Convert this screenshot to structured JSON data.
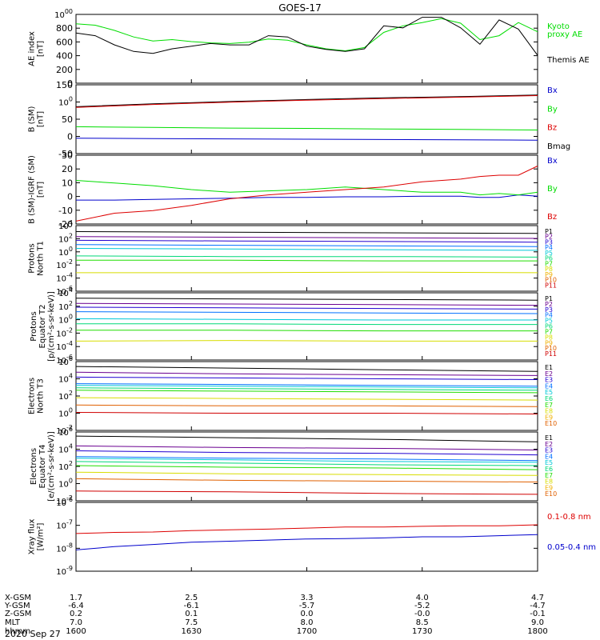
{
  "title": "GOES-17",
  "date_label": "2020 Sep 27",
  "colors": {
    "black": "#000000",
    "green": "#00dd00",
    "blue": "#0000cc",
    "red": "#dd0000",
    "p_channels": [
      "#000000",
      "#6a0090",
      "#2000d0",
      "#0070ff",
      "#00c8d8",
      "#00d878",
      "#20dd00",
      "#d8dd00",
      "#f0b000",
      "#e06000",
      "#d00000"
    ],
    "e_channels": [
      "#000000",
      "#6a0090",
      "#2000d0",
      "#0070ff",
      "#00c8d8",
      "#00d878",
      "#20dd00",
      "#d8dd00",
      "#f0b000",
      "#e06000",
      "#d00000"
    ]
  },
  "orbit_table": {
    "row_labels": [
      "X-GSM",
      "Y-GSM",
      "Z-GSM",
      "MLT",
      "hhmm"
    ],
    "columns": [
      [
        "1.7",
        "-6.4",
        "0.2",
        "7.0",
        "1600"
      ],
      [
        "2.5",
        "-6.1",
        "0.1",
        "7.5",
        "1630"
      ],
      [
        "3.3",
        "-5.7",
        "0.0",
        "8.0",
        "1700"
      ],
      [
        "4.0",
        "-5.2",
        "-0.0",
        "8.5",
        "1730"
      ],
      [
        "4.7",
        "-4.7",
        "-0.1",
        "9.0",
        "1800"
      ]
    ]
  },
  "panels": [
    {
      "id": "ae",
      "ylabel": [
        "AE index",
        "[nT]"
      ],
      "yticks": [
        "0",
        "200",
        "400",
        "600",
        "800",
        "1000"
      ],
      "legend": [
        {
          "text": "Kyoto",
          "color": "#00dd00"
        },
        {
          "text": "proxy AE",
          "color": "#00dd00"
        },
        {
          "text": "Themis AE",
          "color": "#000000"
        }
      ]
    },
    {
      "id": "bsm",
      "ylabel": [
        "B (SM)",
        "[nT]"
      ],
      "yticks": [
        "-50",
        "0",
        "50",
        "100",
        "150"
      ],
      "legend": [
        {
          "text": "Bx",
          "color": "#0000cc"
        },
        {
          "text": "By",
          "color": "#00dd00"
        },
        {
          "text": "Bz",
          "color": "#dd0000"
        },
        {
          "text": "Bmag",
          "color": "#000000"
        }
      ]
    },
    {
      "id": "bigrf",
      "ylabel": [
        "B (SM)-IGRF (SM)",
        "[nT]"
      ],
      "yticks": [
        "-20",
        "-10",
        "0",
        "10",
        "20",
        "30"
      ],
      "legend": [
        {
          "text": "Bx",
          "color": "#0000cc"
        },
        {
          "text": "By",
          "color": "#00dd00"
        },
        {
          "text": "Bz",
          "color": "#dd0000"
        }
      ]
    },
    {
      "id": "pt1",
      "ylabel": [
        "Protons",
        "North T1"
      ],
      "yticks": [
        "10-6",
        "10-4",
        "10-2",
        "100",
        "102",
        "104"
      ],
      "channels": [
        "P1",
        "P2",
        "P3",
        "P4",
        "P5",
        "P6",
        "P7",
        "P8",
        "P9",
        "P10",
        "P11"
      ]
    },
    {
      "id": "pt2",
      "ylabel": [
        "Protons",
        "Equator T2",
        "[p/(cm²-s-sr-keV)]"
      ],
      "yticks": [
        "10-6",
        "10-4",
        "10-2",
        "100",
        "102",
        "104"
      ],
      "channels": [
        "P1",
        "P2",
        "P3",
        "P4",
        "P5",
        "P6",
        "P7",
        "P8",
        "P9",
        "P10",
        "P11"
      ]
    },
    {
      "id": "et3",
      "ylabel": [
        "Electrons",
        "North T3"
      ],
      "yticks": [
        "10-2",
        "100",
        "102",
        "104",
        "106"
      ],
      "channels": [
        "E1",
        "E2",
        "E3",
        "E4",
        "E5",
        "E6",
        "E7",
        "E8",
        "E9",
        "E10"
      ]
    },
    {
      "id": "et4",
      "ylabel": [
        "Electrons",
        "Equator T4",
        "[e/(cm²-s-sr-keV)]"
      ],
      "yticks": [
        "10-2",
        "100",
        "102",
        "104",
        "106"
      ],
      "channels": [
        "E1",
        "E2",
        "E3",
        "E4",
        "E5",
        "E6",
        "E7",
        "E8",
        "E9",
        "E10"
      ]
    },
    {
      "id": "xray",
      "ylabel": [
        "Xray flux",
        "[W/m²]"
      ],
      "yticks": [
        "10-9",
        "10-8",
        "10-7",
        "10-6"
      ],
      "legend": [
        {
          "text": "0.1-0.8 nm",
          "color": "#dd0000"
        },
        {
          "text": "0.05-0.4 nm",
          "color": "#0000cc"
        }
      ]
    }
  ],
  "chart_data": {
    "type": "line",
    "x_axis": {
      "unit": "hhmm",
      "range": [
        "1600",
        "1800"
      ],
      "ticks": [
        "1600",
        "1630",
        "1700",
        "1730",
        "1800"
      ]
    },
    "panels": [
      {
        "id": "ae",
        "ylim": [
          0,
          1000
        ],
        "x": [
          0,
          5,
          10,
          15,
          20,
          25,
          30,
          35,
          40,
          45,
          50,
          55,
          60,
          65,
          70,
          75,
          80,
          85,
          90,
          95,
          100,
          105,
          110,
          115,
          120
        ],
        "series": [
          {
            "name": "Kyoto proxy AE",
            "color": "#00dd00",
            "values": [
              880,
              860,
              780,
              680,
              620,
              640,
              610,
              590,
              580,
              600,
              650,
              630,
              560,
              500,
              470,
              520,
              750,
              850,
              900,
              960,
              890,
              640,
              700,
              900,
              760
            ]
          },
          {
            "name": "Themis AE",
            "color": "#000000",
            "values": [
              740,
              700,
              560,
              460,
              430,
              500,
              540,
              580,
              560,
              560,
              700,
              680,
              540,
              490,
              460,
              500,
              850,
              820,
              980,
              980,
              820,
              570,
              940,
              800,
              400
            ]
          }
        ]
      },
      {
        "id": "bsm",
        "ylim": [
          -50,
          150
        ],
        "x": [
          0,
          20,
          40,
          60,
          80,
          100,
          120
        ],
        "series": [
          {
            "name": "Bmag",
            "color": "#000000",
            "values": [
              88,
              97,
              104,
              110,
              115,
              119,
              124
            ]
          },
          {
            "name": "Bz",
            "color": "#dd0000",
            "values": [
              86,
              95,
              102,
              108,
              113,
              117,
              122
            ]
          },
          {
            "name": "By",
            "color": "#00dd00",
            "values": [
              27,
              25,
              23,
              22,
              20,
              19,
              17
            ]
          },
          {
            "name": "Bx",
            "color": "#0000cc",
            "values": [
              -8,
              -9,
              -10,
              -11,
              -12,
              -13,
              -14
            ]
          }
        ]
      },
      {
        "id": "bigrf",
        "ylim": [
          -20,
          30
        ],
        "x": [
          0,
          10,
          20,
          30,
          40,
          50,
          60,
          70,
          80,
          90,
          100,
          105,
          110,
          115,
          120
        ],
        "series": [
          {
            "name": "Bx",
            "color": "#0000cc",
            "values": [
              -3,
              -3,
              -2.5,
              -2,
              -1.5,
              -1,
              -1,
              -0.5,
              -0.5,
              0,
              0,
              -1,
              -1,
              1,
              0
            ]
          },
          {
            "name": "By",
            "color": "#00dd00",
            "values": [
              12,
              10,
              8,
              5,
              3,
              4,
              5,
              7,
              5,
              3,
              3,
              1,
              2,
              1,
              3
            ]
          },
          {
            "name": "Bz",
            "color": "#dd0000",
            "values": [
              -19,
              -13,
              -11,
              -7,
              -2,
              1,
              3,
              5,
              7,
              11,
              13,
              15,
              16,
              16,
              23
            ]
          }
        ]
      },
      {
        "id": "pt1",
        "ylim_log10": [
          -6,
          4
        ],
        "x": [
          0,
          40,
          80,
          120
        ],
        "series": [
          {
            "name": "P1",
            "color": "#000000",
            "log10_values": [
              3.3,
              3.2,
              3.1,
              3.0
            ]
          },
          {
            "name": "P2",
            "color": "#6a0090",
            "log10_values": [
              2.5,
              2.4,
              2.3,
              2.2
            ]
          },
          {
            "name": "P3",
            "color": "#2000d0",
            "log10_values": [
              1.9,
              1.8,
              1.7,
              1.6
            ]
          },
          {
            "name": "P4",
            "color": "#0070ff",
            "log10_values": [
              1.2,
              1.1,
              1.0,
              0.9
            ]
          },
          {
            "name": "P5",
            "color": "#00c8d8",
            "log10_values": [
              0.6,
              0.5,
              0.4,
              0.3
            ]
          },
          {
            "name": "P6",
            "color": "#00d878",
            "log10_values": [
              -0.6,
              -0.7,
              -0.7,
              -0.8
            ]
          },
          {
            "name": "P7",
            "color": "#20dd00",
            "log10_values": [
              -1.3,
              -1.3,
              -1.4,
              -1.4
            ]
          },
          {
            "name": "P8",
            "color": "#d8dd00",
            "log10_values": [
              -3.3,
              -3.3,
              -3.2,
              -3.3
            ]
          }
        ]
      },
      {
        "id": "pt2",
        "ylim_log10": [
          -6,
          4
        ],
        "x": [
          0,
          40,
          80,
          120
        ],
        "series": [
          {
            "name": "P1",
            "color": "#000000",
            "log10_values": [
              3.4,
              3.3,
              3.2,
              3.1
            ]
          },
          {
            "name": "P2",
            "color": "#6a0090",
            "log10_values": [
              2.6,
              2.5,
              2.4,
              2.3
            ]
          },
          {
            "name": "P3",
            "color": "#2000d0",
            "log10_values": [
              2.0,
              1.9,
              1.8,
              1.7
            ]
          },
          {
            "name": "P4",
            "color": "#0070ff",
            "log10_values": [
              1.3,
              1.2,
              1.1,
              1.0
            ]
          },
          {
            "name": "P5",
            "color": "#00c8d8",
            "log10_values": [
              0.2,
              0.1,
              0.0,
              0.0
            ]
          },
          {
            "name": "P6",
            "color": "#00d878",
            "log10_values": [
              -0.6,
              -0.6,
              -0.7,
              -0.7
            ]
          },
          {
            "name": "P7",
            "color": "#20dd00",
            "log10_values": [
              -1.6,
              -1.6,
              -1.7,
              -1.7
            ]
          },
          {
            "name": "P8",
            "color": "#d8dd00",
            "log10_values": [
              -3.3,
              -3.2,
              -3.3,
              -3.3
            ]
          }
        ]
      },
      {
        "id": "et3",
        "ylim_log10": [
          -2,
          6
        ],
        "x": [
          0,
          40,
          80,
          120
        ],
        "series": [
          {
            "name": "E1",
            "color": "#000000",
            "log10_values": [
              5.6,
              5.4,
              5.2,
              5.0
            ]
          },
          {
            "name": "E2",
            "color": "#6a0090",
            "log10_values": [
              4.9,
              4.7,
              4.6,
              4.5
            ]
          },
          {
            "name": "E3",
            "color": "#2000d0",
            "log10_values": [
              4.3,
              4.2,
              4.1,
              4.0
            ]
          },
          {
            "name": "E4",
            "color": "#0070ff",
            "log10_values": [
              3.5,
              3.4,
              3.3,
              3.2
            ]
          },
          {
            "name": "E5",
            "color": "#00c8d8",
            "log10_values": [
              3.3,
              3.2,
              3.1,
              3.0
            ]
          },
          {
            "name": "E6",
            "color": "#00d878",
            "log10_values": [
              3.0,
              2.9,
              2.8,
              2.7
            ]
          },
          {
            "name": "E7",
            "color": "#20dd00",
            "log10_values": [
              2.7,
              2.6,
              2.5,
              2.4
            ]
          },
          {
            "name": "E8",
            "color": "#d8dd00",
            "log10_values": [
              1.8,
              1.7,
              1.6,
              1.5
            ]
          },
          {
            "name": "E9",
            "color": "#e06000",
            "log10_values": [
              0.9,
              0.8,
              0.8,
              0.7
            ]
          },
          {
            "name": "E10",
            "color": "#d00000",
            "log10_values": [
              0.0,
              -0.1,
              -0.1,
              -0.2
            ]
          }
        ]
      },
      {
        "id": "et4",
        "ylim_log10": [
          -2,
          6
        ],
        "x": [
          0,
          40,
          80,
          120
        ],
        "series": [
          {
            "name": "E1",
            "color": "#000000",
            "log10_values": [
              5.7,
              5.5,
              5.3,
              5.0
            ]
          },
          {
            "name": "E2",
            "color": "#6a0090",
            "log10_values": [
              4.5,
              4.3,
              4.2,
              4.0
            ]
          },
          {
            "name": "E3",
            "color": "#2000d0",
            "log10_values": [
              3.9,
              3.7,
              3.6,
              3.4
            ]
          },
          {
            "name": "E4",
            "color": "#0070ff",
            "log10_values": [
              3.2,
              3.0,
              2.9,
              2.7
            ]
          },
          {
            "name": "E5",
            "color": "#00c8d8",
            "log10_values": [
              3.0,
              2.8,
              2.6,
              2.5
            ]
          },
          {
            "name": "E6",
            "color": "#00d878",
            "log10_values": [
              2.6,
              2.4,
              2.2,
              2.1
            ]
          },
          {
            "name": "E7",
            "color": "#20dd00",
            "log10_values": [
              2.1,
              1.9,
              1.8,
              1.6
            ]
          },
          {
            "name": "E8",
            "color": "#d8dd00",
            "log10_values": [
              1.3,
              1.1,
              1.0,
              0.9
            ]
          },
          {
            "name": "E9",
            "color": "#e06000",
            "log10_values": [
              0.5,
              0.3,
              0.2,
              0.1
            ]
          },
          {
            "name": "E10",
            "color": "#d00000",
            "log10_values": [
              -1.0,
              -1.1,
              -1.3,
              -1.4
            ]
          }
        ]
      },
      {
        "id": "xray",
        "ylim_log10": [
          -9,
          -6
        ],
        "x": [
          0,
          10,
          20,
          30,
          40,
          50,
          60,
          70,
          80,
          90,
          100,
          110,
          120
        ],
        "series": [
          {
            "name": "0.1-0.8 nm",
            "color": "#dd0000",
            "log10_values": [
              -7.35,
              -7.3,
              -7.28,
              -7.22,
              -7.18,
              -7.15,
              -7.1,
              -7.05,
              -7.05,
              -7.02,
              -7.0,
              -7.0,
              -6.95
            ]
          },
          {
            "name": "0.05-0.4 nm",
            "color": "#0000cc",
            "log10_values": [
              -8.1,
              -7.95,
              -7.85,
              -7.75,
              -7.7,
              -7.65,
              -7.6,
              -7.58,
              -7.55,
              -7.5,
              -7.5,
              -7.45,
              -7.4
            ]
          }
        ]
      }
    ]
  }
}
